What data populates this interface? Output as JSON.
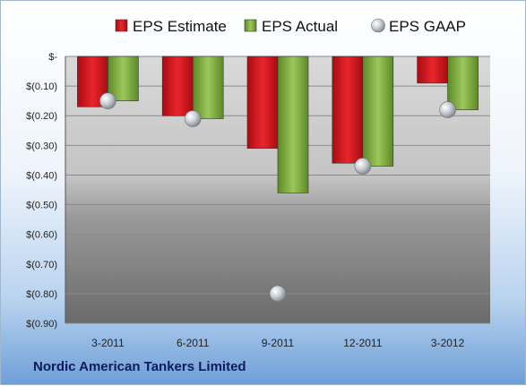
{
  "chart_data": {
    "type": "bar",
    "categories": [
      "3-2011",
      "6-2011",
      "9-2011",
      "12-2011",
      "3-2012"
    ],
    "series": [
      {
        "name": "EPS Estimate",
        "values": [
          -0.17,
          -0.2,
          -0.31,
          -0.36,
          -0.09
        ],
        "color": "#d9131b"
      },
      {
        "name": "EPS Actual",
        "values": [
          -0.15,
          -0.21,
          -0.46,
          -0.37,
          -0.18
        ],
        "color": "#7cac3a"
      },
      {
        "name": "EPS GAAP",
        "values": [
          -0.15,
          -0.21,
          -0.8,
          -0.37,
          -0.18
        ],
        "color": "#b8bec6",
        "style": "marker"
      }
    ],
    "ylim": [
      -0.9,
      0
    ],
    "yticks": [
      0,
      -0.1,
      -0.2,
      -0.3,
      -0.4,
      -0.5,
      -0.6,
      -0.7,
      -0.8,
      -0.9
    ],
    "ytick_labels": [
      "$-",
      "$(0.10)",
      "$(0.20)",
      "$(0.30)",
      "$(0.40)",
      "$(0.50)",
      "$(0.60)",
      "$(0.70)",
      "$(0.80)",
      "$(0.90)"
    ],
    "grid": true,
    "legend": "top",
    "footer": "Nordic American Tankers Limited"
  }
}
